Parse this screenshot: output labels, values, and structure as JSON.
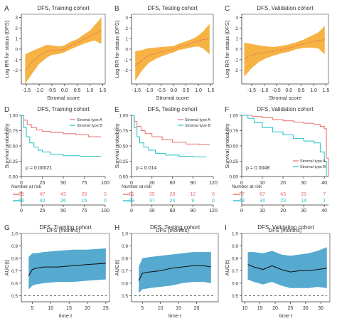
{
  "colors": {
    "band": "#f5a623",
    "band_line": "#e06060",
    "red": "#e8706a",
    "cyan": "#22c2c8",
    "auc_band": "#56a9cf",
    "axis": "#333333",
    "text": "#333333"
  },
  "risk_header": "Number at risk",
  "chart_data": [
    {
      "id": "A",
      "label": "A",
      "type": "area",
      "title": "DFS, Training cohort",
      "xlabel": "Stromal score",
      "ylabel": "Log RR for status (DFS)",
      "xlim": [
        -1.7,
        1.6
      ],
      "ylim": [
        -3.3,
        3.3
      ],
      "xticks": [
        "-1.5",
        "-1.0",
        "-0.5",
        "0.0",
        "0.5",
        "1.0",
        "1.5"
      ],
      "xtick_values": [
        -1.5,
        -1.0,
        -0.5,
        0.0,
        0.5,
        1.0,
        1.5
      ],
      "yticks": [
        "-2",
        "-1",
        "0",
        "1",
        "2",
        "3"
      ],
      "ytick_values": [
        -2,
        -1,
        0,
        1,
        2,
        3
      ],
      "x": [
        -1.55,
        -1.3,
        -1.0,
        -0.7,
        -0.5,
        -0.2,
        0.0,
        0.2,
        0.5,
        0.8,
        1.0,
        1.2,
        1.45
      ],
      "fit": [
        -2.0,
        -1.3,
        -0.6,
        -0.2,
        -0.1,
        -0.1,
        0.0,
        0.3,
        0.6,
        1.0,
        1.2,
        1.5,
        1.7
      ],
      "lower": [
        -3.3,
        -2.4,
        -1.4,
        -0.8,
        -0.55,
        -0.45,
        -0.3,
        -0.05,
        0.25,
        0.55,
        0.7,
        0.8,
        0.5
      ],
      "upper": [
        -0.5,
        -0.2,
        0.1,
        0.4,
        0.35,
        0.25,
        0.35,
        0.65,
        0.95,
        1.45,
        1.75,
        2.3,
        3.0
      ]
    },
    {
      "id": "B",
      "label": "B",
      "type": "area",
      "title": "DFS, Testing cohort",
      "xlabel": "Stromal score",
      "ylabel": "Log RR for status (DFS)",
      "xlim": [
        -1.7,
        1.6
      ],
      "ylim": [
        -3.3,
        3.3
      ],
      "xticks": [
        "-1.5",
        "-1.0",
        "-0.5",
        "0.0",
        "0.5",
        "1.0",
        "1.5"
      ],
      "xtick_values": [
        -1.5,
        -1.0,
        -0.5,
        0.0,
        0.5,
        1.0,
        1.5
      ],
      "yticks": [
        "-2",
        "-1",
        "0",
        "1",
        "2",
        "3"
      ],
      "ytick_values": [
        -2,
        -1,
        0,
        1,
        2,
        3
      ],
      "x": [
        -1.55,
        -1.3,
        -1.0,
        -0.7,
        -0.5,
        -0.2,
        0.0,
        0.2,
        0.5,
        0.8,
        1.0,
        1.2,
        1.45
      ],
      "fit": [
        -1.6,
        -1.1,
        -0.6,
        -0.4,
        -0.25,
        -0.1,
        0.0,
        0.2,
        0.4,
        0.6,
        0.8,
        0.9,
        1.0
      ],
      "lower": [
        -3.0,
        -2.1,
        -1.3,
        -0.9,
        -0.7,
        -0.45,
        -0.3,
        -0.1,
        0.05,
        0.2,
        0.25,
        0.05,
        -0.5
      ],
      "upper": [
        -0.2,
        -0.1,
        0.1,
        0.15,
        0.2,
        0.25,
        0.3,
        0.5,
        0.75,
        1.0,
        1.3,
        1.7,
        2.4
      ]
    },
    {
      "id": "C",
      "label": "C",
      "type": "area",
      "title": "DFS, Validation cohort",
      "xlabel": "Stromal score",
      "ylabel": "Log RR for status (DFS)",
      "xlim": [
        -1.9,
        1.6
      ],
      "ylim": [
        -3.3,
        3.3
      ],
      "xticks": [
        "-1.5",
        "-1.0",
        "-0.5",
        "0.0",
        "0.5",
        "1.0",
        "1.5"
      ],
      "xtick_values": [
        -1.5,
        -1.0,
        -0.5,
        0.0,
        0.5,
        1.0,
        1.5
      ],
      "yticks": [
        "-2",
        "-1",
        "0",
        "1",
        "2",
        "3"
      ],
      "ytick_values": [
        -2,
        -1,
        0,
        1,
        2,
        3
      ],
      "x": [
        -1.8,
        -1.5,
        -1.2,
        -0.9,
        -0.6,
        -0.3,
        0.0,
        0.3,
        0.6,
        0.9,
        1.2,
        1.45
      ],
      "fit": [
        -0.9,
        -0.6,
        -0.4,
        -0.3,
        -0.2,
        -0.05,
        0.1,
        0.3,
        0.5,
        0.7,
        0.8,
        0.9
      ],
      "lower": [
        -2.6,
        -1.8,
        -1.2,
        -0.85,
        -0.6,
        -0.4,
        -0.25,
        0.0,
        0.1,
        0.15,
        0.05,
        -0.5
      ],
      "upper": [
        0.6,
        0.5,
        0.35,
        0.25,
        0.2,
        0.3,
        0.45,
        0.65,
        0.9,
        1.25,
        1.6,
        2.2
      ]
    },
    {
      "id": "D",
      "label": "D",
      "type": "line",
      "title": "DFS, Training cohort",
      "xlabel": "DFS (months)",
      "ylabel": "Survival probability",
      "xlim": [
        0,
        100
      ],
      "ylim": [
        0,
        1.0
      ],
      "xticks": [
        "0",
        "25",
        "50",
        "75",
        "100"
      ],
      "xtick_values": [
        0,
        25,
        50,
        75,
        100
      ],
      "yticks": [
        "0.00",
        "0.25",
        "0.50",
        "0.75",
        "1.00"
      ],
      "ytick_values": [
        0,
        0.25,
        0.5,
        0.75,
        1.0
      ],
      "pvalue": "p = 0.00021",
      "legend_position": "top-right",
      "series": [
        {
          "name": "Stromal type A",
          "color": "red",
          "x": [
            0,
            3,
            7,
            12,
            18,
            25,
            35,
            50,
            65,
            80,
            95
          ],
          "y": [
            1.0,
            0.92,
            0.85,
            0.8,
            0.76,
            0.74,
            0.72,
            0.7,
            0.68,
            0.65,
            0.65
          ]
        },
        {
          "name": "Stromal type B",
          "color": "cyan",
          "x": [
            0,
            3,
            6,
            10,
            15,
            20,
            25,
            35,
            50,
            70,
            95
          ],
          "y": [
            1.0,
            0.8,
            0.65,
            0.55,
            0.48,
            0.43,
            0.4,
            0.36,
            0.34,
            0.33,
            0.33
          ]
        }
      ],
      "risk_ticks": [
        "0",
        "25",
        "50",
        "75",
        "100"
      ],
      "risk_table": [
        {
          "color": "red",
          "values": [
            "65",
            "47",
            "43",
            "26",
            "0"
          ]
        },
        {
          "color": "cyan",
          "values": [
            "96",
            "40",
            "26",
            "15",
            "0"
          ]
        }
      ]
    },
    {
      "id": "E",
      "label": "E",
      "type": "line",
      "title": "DFS, Testing cohort",
      "xlabel": "DFS (months)",
      "ylabel": "Survival probability",
      "xlim": [
        0,
        120
      ],
      "ylim": [
        0,
        1.0
      ],
      "xticks": [
        "0",
        "30",
        "60",
        "90",
        "120"
      ],
      "xtick_values": [
        0,
        30,
        60,
        90,
        120
      ],
      "yticks": [
        "0.00",
        "0.25",
        "0.50",
        "0.75",
        "1.00"
      ],
      "ytick_values": [
        0,
        0.25,
        0.5,
        0.75,
        1.0
      ],
      "pvalue": "p = 0.014",
      "legend_position": "top-right",
      "series": [
        {
          "name": "Stromal type A",
          "color": "red",
          "x": [
            0,
            4,
            8,
            14,
            20,
            30,
            45,
            60,
            80,
            100,
            115
          ],
          "y": [
            1.0,
            0.9,
            0.82,
            0.75,
            0.7,
            0.65,
            0.6,
            0.56,
            0.53,
            0.52,
            0.52
          ]
        },
        {
          "name": "Stromal type B",
          "color": "cyan",
          "x": [
            0,
            4,
            8,
            12,
            18,
            25,
            35,
            50,
            70,
            90,
            110
          ],
          "y": [
            1.0,
            0.8,
            0.65,
            0.55,
            0.48,
            0.43,
            0.38,
            0.35,
            0.33,
            0.32,
            0.32
          ]
        }
      ],
      "risk_ticks": [
        "0",
        "30",
        "60",
        "90",
        "120"
      ],
      "risk_table": [
        {
          "color": "red",
          "values": [
            "61",
            "35",
            "28",
            "12",
            "0"
          ]
        },
        {
          "color": "cyan",
          "values": [
            "99",
            "37",
            "24",
            "9",
            "0"
          ]
        }
      ]
    },
    {
      "id": "F",
      "label": "F",
      "type": "line",
      "title": "DFS, Validation cohort",
      "xlabel": "DFS (months)",
      "ylabel": "Survival probability",
      "xlim": [
        0,
        42
      ],
      "ylim": [
        0,
        1.0
      ],
      "xticks": [
        "0",
        "10",
        "20",
        "30",
        "40"
      ],
      "xtick_values": [
        0,
        10,
        20,
        30,
        40
      ],
      "yticks": [
        "0.00",
        "0.25",
        "0.50",
        "0.75",
        "1.00"
      ],
      "ytick_values": [
        0,
        0.25,
        0.5,
        0.75,
        1.0
      ],
      "pvalue": "p = 0.0048",
      "legend_position": "bottom-right",
      "series": [
        {
          "name": "Stromal type A",
          "color": "red",
          "x": [
            0,
            5,
            10,
            15,
            20,
            25,
            30,
            35,
            38,
            40,
            41,
            42
          ],
          "y": [
            1.0,
            0.98,
            0.96,
            0.93,
            0.91,
            0.89,
            0.87,
            0.85,
            0.82,
            0.78,
            0.3,
            0.0
          ]
        },
        {
          "name": "Stromal type B",
          "color": "cyan",
          "x": [
            0,
            3,
            6,
            10,
            15,
            20,
            25,
            30,
            35,
            38,
            40,
            41
          ],
          "y": [
            1.0,
            0.95,
            0.88,
            0.8,
            0.73,
            0.68,
            0.62,
            0.58,
            0.55,
            0.4,
            0.25,
            0.0
          ]
        }
      ],
      "risk_ticks": [
        "0",
        "10",
        "20",
        "30",
        "40"
      ],
      "risk_table": [
        {
          "color": "red",
          "values": [
            "77",
            "67",
            "43",
            "25",
            "7"
          ]
        },
        {
          "color": "cyan",
          "values": [
            "43",
            "34",
            "23",
            "14",
            "1"
          ]
        }
      ]
    },
    {
      "id": "G",
      "label": "G",
      "type": "area",
      "title": "DFS, Training cohort",
      "xlabel": "time t",
      "ylabel": "AUC(t)",
      "xlim": [
        2,
        26
      ],
      "ylim": [
        0.45,
        1.0
      ],
      "xticks": [
        "5",
        "10",
        "15",
        "20",
        "25"
      ],
      "xtick_values": [
        5,
        10,
        15,
        20,
        25
      ],
      "yticks": [
        "0.5",
        "0.6",
        "0.7",
        "0.8",
        "0.9",
        "1.0"
      ],
      "ytick_values": [
        0.5,
        0.6,
        0.7,
        0.8,
        0.9,
        1.0
      ],
      "reference_y": 0.5,
      "x": [
        4,
        5,
        6,
        8,
        12,
        16,
        20,
        25
      ],
      "auc": [
        0.66,
        0.71,
        0.72,
        0.73,
        0.73,
        0.74,
        0.75,
        0.76
      ],
      "lower": [
        0.55,
        0.58,
        0.59,
        0.6,
        0.61,
        0.61,
        0.62,
        0.63
      ],
      "upper": [
        0.81,
        0.84,
        0.84,
        0.85,
        0.86,
        0.87,
        0.87,
        0.88
      ]
    },
    {
      "id": "H",
      "label": "H",
      "type": "area",
      "title": "DFS, Testing cohort",
      "xlabel": "time t",
      "ylabel": "AUC(t)",
      "xlim": [
        2,
        26
      ],
      "ylim": [
        0.45,
        1.0
      ],
      "xticks": [
        "5",
        "10",
        "15",
        "20"
      ],
      "xtick_values": [
        5,
        10,
        15,
        20
      ],
      "yticks": [
        "0.5",
        "0.6",
        "0.7",
        "0.8",
        "0.9",
        "1.0"
      ],
      "ytick_values": [
        0.5,
        0.6,
        0.7,
        0.8,
        0.9,
        1.0
      ],
      "reference_y": 0.5,
      "x": [
        4,
        5,
        7,
        10,
        13,
        16,
        19,
        22,
        24
      ],
      "auc": [
        0.62,
        0.68,
        0.69,
        0.7,
        0.72,
        0.73,
        0.74,
        0.74,
        0.73
      ],
      "lower": [
        0.52,
        0.55,
        0.56,
        0.57,
        0.58,
        0.6,
        0.61,
        0.61,
        0.6
      ],
      "upper": [
        0.73,
        0.8,
        0.81,
        0.82,
        0.83,
        0.84,
        0.85,
        0.85,
        0.85
      ]
    },
    {
      "id": "I",
      "label": "I",
      "type": "area",
      "title": "DFS, Validation cohort",
      "xlabel": "time t",
      "ylabel": "AUC(t)",
      "xlim": [
        9,
        38
      ],
      "ylim": [
        0.45,
        1.0
      ],
      "xticks": [
        "10",
        "15",
        "20",
        "25",
        "30",
        "35"
      ],
      "xtick_values": [
        10,
        15,
        20,
        25,
        30,
        35
      ],
      "yticks": [
        "0.5",
        "0.6",
        "0.7",
        "0.8",
        "0.9",
        "1.0"
      ],
      "ytick_values": [
        0.5,
        0.6,
        0.7,
        0.8,
        0.9,
        1.0
      ],
      "reference_y": 0.5,
      "x": [
        11,
        13,
        16,
        19,
        22,
        25,
        28,
        31,
        34,
        37
      ],
      "auc": [
        0.75,
        0.73,
        0.71,
        0.74,
        0.71,
        0.69,
        0.7,
        0.7,
        0.71,
        0.72
      ],
      "lower": [
        0.63,
        0.61,
        0.59,
        0.61,
        0.58,
        0.56,
        0.56,
        0.56,
        0.57,
        0.56
      ],
      "upper": [
        0.85,
        0.85,
        0.84,
        0.86,
        0.83,
        0.82,
        0.83,
        0.84,
        0.86,
        0.89
      ]
    }
  ]
}
